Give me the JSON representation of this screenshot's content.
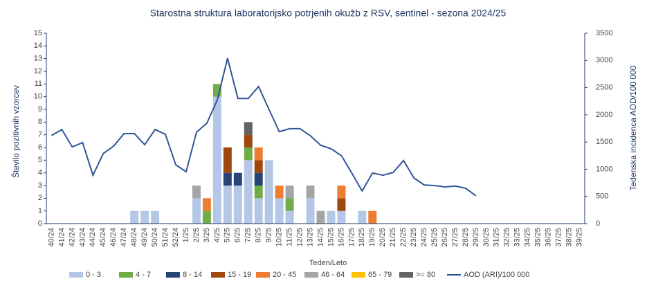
{
  "chart_data": {
    "type": "bar",
    "stacked": true,
    "title": "Starostna struktura  laboratorijsko potrjenih okužb z RSV, sentinel - sezona 2024/25",
    "xlabel": "Teden/Leto",
    "ylabel": "Število pozitivnih vzorcev",
    "y2label": "Tedenska incidenca AOD/100 000",
    "categories": [
      "40/24",
      "41/24",
      "42/24",
      "43/24",
      "44/24",
      "45/24",
      "46/24",
      "47/24",
      "48/24",
      "49/24",
      "50/24",
      "51/24",
      "52/24",
      "1/25",
      "2/25",
      "3/25",
      "4/25",
      "5/25",
      "6/25",
      "7/25",
      "8/25",
      "9/25",
      "10/25",
      "11/25",
      "12/25",
      "13/25",
      "14/25",
      "15/25",
      "16/25",
      "17/25",
      "18/25",
      "19/25",
      "20/25",
      "21/25",
      "22/25",
      "23/25",
      "24/25",
      "25/25",
      "26/25",
      "27/25",
      "28/25",
      "29/25",
      "30/25",
      "31/25",
      "32/25",
      "33/25",
      "34/25",
      "35/25",
      "36/25",
      "37/25",
      "38/25",
      "39/25"
    ],
    "series": [
      {
        "name": "0 - 3",
        "color": "#b4c7e7",
        "values": [
          0,
          0,
          0,
          0,
          0,
          0,
          0,
          0,
          1,
          1,
          1,
          0,
          0,
          0,
          2,
          0,
          10,
          3,
          3,
          5,
          2,
          5,
          2,
          1,
          0,
          2,
          0,
          1,
          1,
          0,
          1,
          0,
          0,
          0,
          0,
          0,
          0,
          0,
          0,
          0,
          0,
          0,
          0,
          0,
          0,
          0,
          0,
          0,
          0,
          0,
          0,
          0
        ]
      },
      {
        "name": "4 - 7",
        "color": "#70ad47",
        "values": [
          0,
          0,
          0,
          0,
          0,
          0,
          0,
          0,
          0,
          0,
          0,
          0,
          0,
          0,
          0,
          1,
          1,
          0,
          0,
          1,
          1,
          0,
          0,
          1,
          0,
          0,
          0,
          0,
          0,
          0,
          0,
          0,
          0,
          0,
          0,
          0,
          0,
          0,
          0,
          0,
          0,
          0,
          0,
          0,
          0,
          0,
          0,
          0,
          0,
          0,
          0,
          0
        ]
      },
      {
        "name": "8 - 14",
        "color": "#264478",
        "values": [
          0,
          0,
          0,
          0,
          0,
          0,
          0,
          0,
          0,
          0,
          0,
          0,
          0,
          0,
          0,
          0,
          0,
          1,
          1,
          0,
          1,
          0,
          0,
          0,
          0,
          0,
          0,
          0,
          0,
          0,
          0,
          0,
          0,
          0,
          0,
          0,
          0,
          0,
          0,
          0,
          0,
          0,
          0,
          0,
          0,
          0,
          0,
          0,
          0,
          0,
          0,
          0
        ]
      },
      {
        "name": "15 - 19",
        "color": "#9e480e",
        "values": [
          0,
          0,
          0,
          0,
          0,
          0,
          0,
          0,
          0,
          0,
          0,
          0,
          0,
          0,
          0,
          0,
          0,
          2,
          0,
          1,
          1,
          0,
          0,
          0,
          0,
          0,
          0,
          0,
          1,
          0,
          0,
          0,
          0,
          0,
          0,
          0,
          0,
          0,
          0,
          0,
          0,
          0,
          0,
          0,
          0,
          0,
          0,
          0,
          0,
          0,
          0,
          0
        ]
      },
      {
        "name": "20 - 45",
        "color": "#ed7d31",
        "values": [
          0,
          0,
          0,
          0,
          0,
          0,
          0,
          0,
          0,
          0,
          0,
          0,
          0,
          0,
          0,
          1,
          0,
          0,
          0,
          0,
          1,
          0,
          1,
          0,
          0,
          0,
          0,
          0,
          1,
          0,
          0,
          1,
          0,
          0,
          0,
          0,
          0,
          0,
          0,
          0,
          0,
          0,
          0,
          0,
          0,
          0,
          0,
          0,
          0,
          0,
          0,
          0
        ]
      },
      {
        "name": "46 - 64",
        "color": "#a5a5a5",
        "values": [
          0,
          0,
          0,
          0,
          0,
          0,
          0,
          0,
          0,
          0,
          0,
          0,
          0,
          0,
          1,
          0,
          0,
          0,
          0,
          0,
          0,
          0,
          0,
          1,
          0,
          1,
          1,
          0,
          0,
          0,
          0,
          0,
          0,
          0,
          0,
          0,
          0,
          0,
          0,
          0,
          0,
          0,
          0,
          0,
          0,
          0,
          0,
          0,
          0,
          0,
          0,
          0
        ]
      },
      {
        "name": "65 - 79",
        "color": "#ffc000",
        "values": [
          0,
          0,
          0,
          0,
          0,
          0,
          0,
          0,
          0,
          0,
          0,
          0,
          0,
          0,
          0,
          0,
          0,
          0,
          0,
          0,
          0,
          0,
          0,
          0,
          0,
          0,
          0,
          0,
          0,
          0,
          0,
          0,
          0,
          0,
          0,
          0,
          0,
          0,
          0,
          0,
          0,
          0,
          0,
          0,
          0,
          0,
          0,
          0,
          0,
          0,
          0,
          0
        ]
      },
      {
        "name": ">= 80",
        "color": "#636363",
        "values": [
          0,
          0,
          0,
          0,
          0,
          0,
          0,
          0,
          0,
          0,
          0,
          0,
          0,
          0,
          0,
          0,
          0,
          0,
          0,
          1,
          0,
          0,
          0,
          0,
          0,
          0,
          0,
          0,
          0,
          0,
          0,
          0,
          0,
          0,
          0,
          0,
          0,
          0,
          0,
          0,
          0,
          0,
          0,
          0,
          0,
          0,
          0,
          0,
          0,
          0,
          0,
          0
        ]
      },
      {
        "name": "AOD (ARI)/100 000",
        "color": "#2f5597",
        "type": "line",
        "axis": "y2",
        "values": [
          1620,
          1730,
          1410,
          1490,
          890,
          1290,
          1425,
          1655,
          1655,
          1450,
          1730,
          1640,
          1080,
          955,
          1680,
          1845,
          2265,
          3040,
          2300,
          2300,
          2520,
          2100,
          1690,
          1745,
          1745,
          1615,
          1440,
          1375,
          1250,
          930,
          600,
          930,
          890,
          940,
          1160,
          840,
          710,
          700,
          675,
          690,
          650,
          510,
          null,
          null,
          null,
          null,
          null,
          null,
          null,
          null,
          null,
          null
        ]
      }
    ],
    "ylim": [
      0,
      15
    ],
    "yticks": [
      0,
      1,
      2,
      3,
      4,
      5,
      6,
      7,
      8,
      9,
      10,
      11,
      12,
      13,
      14,
      15
    ],
    "y2lim": [
      0,
      3500
    ],
    "y2ticks": [
      0,
      500,
      1000,
      1500,
      2000,
      2500,
      3000,
      3500
    ],
    "grid": false,
    "legend": "bottom"
  }
}
